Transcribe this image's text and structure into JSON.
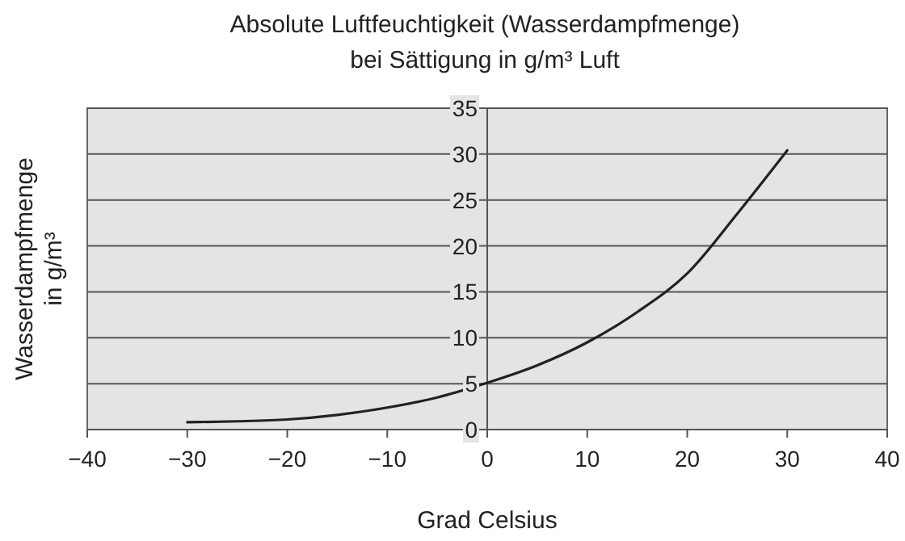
{
  "chart_data": {
    "type": "line",
    "title": "Absolute Luftfeuchtigkeit (Wasserdampfmenge)",
    "subtitle": "bei Sättigung in g/m³ Luft",
    "xlabel": "Grad Celsius",
    "ylabel": "Wasserdampfmenge in g/m³",
    "x": [
      -30,
      -25,
      -20,
      -15,
      -10,
      -5,
      0,
      5,
      10,
      15,
      20,
      25,
      30
    ],
    "series": [
      {
        "color": "#222222",
        "values": [
          0.8,
          0.9,
          1.1,
          1.6,
          2.4,
          3.5,
          5.1,
          7.0,
          9.5,
          12.8,
          17.0,
          23.5,
          30.4
        ]
      }
    ],
    "xlim": [
      -40,
      40
    ],
    "xticks": [
      -40,
      -30,
      -20,
      -10,
      0,
      10,
      20,
      30,
      40
    ],
    "ylim": [
      0,
      35
    ],
    "yticks": [
      0,
      5,
      10,
      15,
      20,
      25,
      30,
      35
    ],
    "grid": "y",
    "marker": "none",
    "line_style": "solid"
  }
}
